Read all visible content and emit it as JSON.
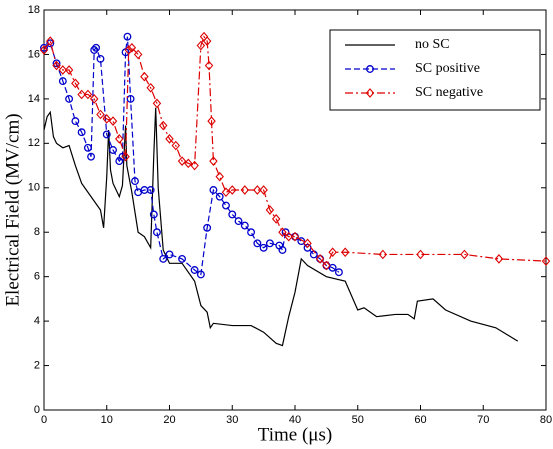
{
  "chart_data": {
    "type": "line",
    "xlabel": "Time (μs)",
    "ylabel": "Electrical Field (MV/cm)",
    "xlim": [
      0,
      80
    ],
    "xticks": [
      0,
      10,
      20,
      30,
      40,
      50,
      60,
      70,
      80
    ],
    "ylim": [
      0,
      18
    ],
    "yticks": [
      0,
      2,
      4,
      6,
      8,
      10,
      12,
      14,
      16,
      18
    ],
    "legend": "upper-right",
    "series": [
      {
        "name": "no SC",
        "color": "#000000",
        "style": "solid",
        "marker": null,
        "x": [
          0,
          0.5,
          1,
          1.5,
          2,
          3,
          4,
          5,
          6,
          7,
          8,
          9,
          9.5,
          10,
          10.3,
          10.6,
          11,
          12,
          12.5,
          13,
          13.2,
          14,
          15,
          16,
          17,
          17.5,
          17.8,
          18.2,
          19,
          20,
          22,
          24,
          25,
          26,
          26.5,
          27,
          30,
          33,
          35,
          37,
          38,
          39,
          40,
          41,
          42,
          45,
          48,
          50,
          51,
          53,
          56,
          58,
          59,
          59.5,
          62,
          64,
          68,
          72,
          75.5
        ],
        "values": [
          12.6,
          13.2,
          13.4,
          12.3,
          12.0,
          11.8,
          11.9,
          11.0,
          10.2,
          9.8,
          9.4,
          9.0,
          8.2,
          10.5,
          12.6,
          10.8,
          10.2,
          9.6,
          10.1,
          12.8,
          11.0,
          9.8,
          8.0,
          7.8,
          7.3,
          11.5,
          13.6,
          10.0,
          7.2,
          6.6,
          6.6,
          5.8,
          4.7,
          4.4,
          3.7,
          3.9,
          3.8,
          3.8,
          3.5,
          3.0,
          2.9,
          4.2,
          5.3,
          6.8,
          6.5,
          6.0,
          5.8,
          4.5,
          4.6,
          4.2,
          4.3,
          4.3,
          4.1,
          4.9,
          5.0,
          4.5,
          4.0,
          3.7,
          3.1
        ]
      },
      {
        "name": "SC positive",
        "color": "#0000cc",
        "style": "dashed",
        "marker": "circle",
        "x": [
          0,
          1,
          2,
          3,
          4,
          5,
          6,
          7,
          7.5,
          8,
          8.3,
          9,
          10,
          11,
          12,
          12.5,
          13,
          13.3,
          13.8,
          14.5,
          15,
          16,
          17,
          17.5,
          18,
          19,
          20,
          22,
          24,
          25,
          26,
          27,
          28,
          29,
          30,
          31,
          32,
          33,
          34,
          35,
          36,
          37.5,
          38,
          38.5,
          40,
          41,
          42,
          43,
          44,
          45,
          46,
          47
        ],
        "values": [
          16.3,
          16.5,
          15.6,
          14.8,
          14.0,
          13.0,
          12.5,
          11.8,
          11.4,
          16.2,
          16.3,
          15.8,
          12.4,
          11.7,
          11.2,
          11.4,
          16.1,
          16.8,
          14.0,
          10.3,
          9.8,
          9.9,
          9.9,
          8.8,
          8.0,
          6.8,
          7.0,
          6.8,
          6.3,
          6.1,
          8.2,
          9.9,
          9.6,
          9.2,
          8.8,
          8.5,
          8.3,
          8.0,
          7.5,
          7.3,
          7.5,
          7.4,
          7.2,
          8.0,
          7.8,
          7.6,
          7.3,
          7.0,
          6.8,
          6.5,
          6.4,
          6.2
        ]
      },
      {
        "name": "SC negative",
        "color": "#dd0000",
        "style": "dashdot",
        "marker": "diamond",
        "x": [
          0,
          1,
          2,
          3,
          4,
          5,
          6,
          7,
          8,
          9,
          10,
          11,
          12,
          13,
          13.5,
          14,
          15,
          16,
          17,
          18,
          19,
          20,
          21,
          22,
          23,
          24,
          25,
          25.5,
          26,
          26.3,
          26.7,
          27,
          28,
          29,
          30,
          32,
          34,
          35,
          36,
          37,
          38,
          39,
          40,
          42,
          44,
          45,
          46,
          48,
          54,
          60,
          67,
          72.5,
          80
        ],
        "values": [
          16.2,
          16.6,
          15.5,
          15.3,
          15.3,
          14.7,
          14.2,
          14.2,
          14.0,
          13.3,
          13.1,
          13.0,
          12.2,
          11.4,
          16.2,
          16.3,
          16.0,
          15.0,
          14.5,
          13.8,
          12.8,
          12.2,
          11.9,
          11.2,
          11.1,
          11.0,
          16.4,
          16.8,
          16.6,
          15.5,
          13.0,
          11.2,
          10.5,
          9.8,
          9.9,
          9.9,
          9.9,
          9.9,
          9.0,
          8.6,
          8.0,
          7.8,
          7.8,
          7.5,
          6.8,
          6.5,
          7.1,
          7.1,
          7.0,
          7.0,
          7.0,
          6.8,
          6.7
        ]
      }
    ]
  }
}
